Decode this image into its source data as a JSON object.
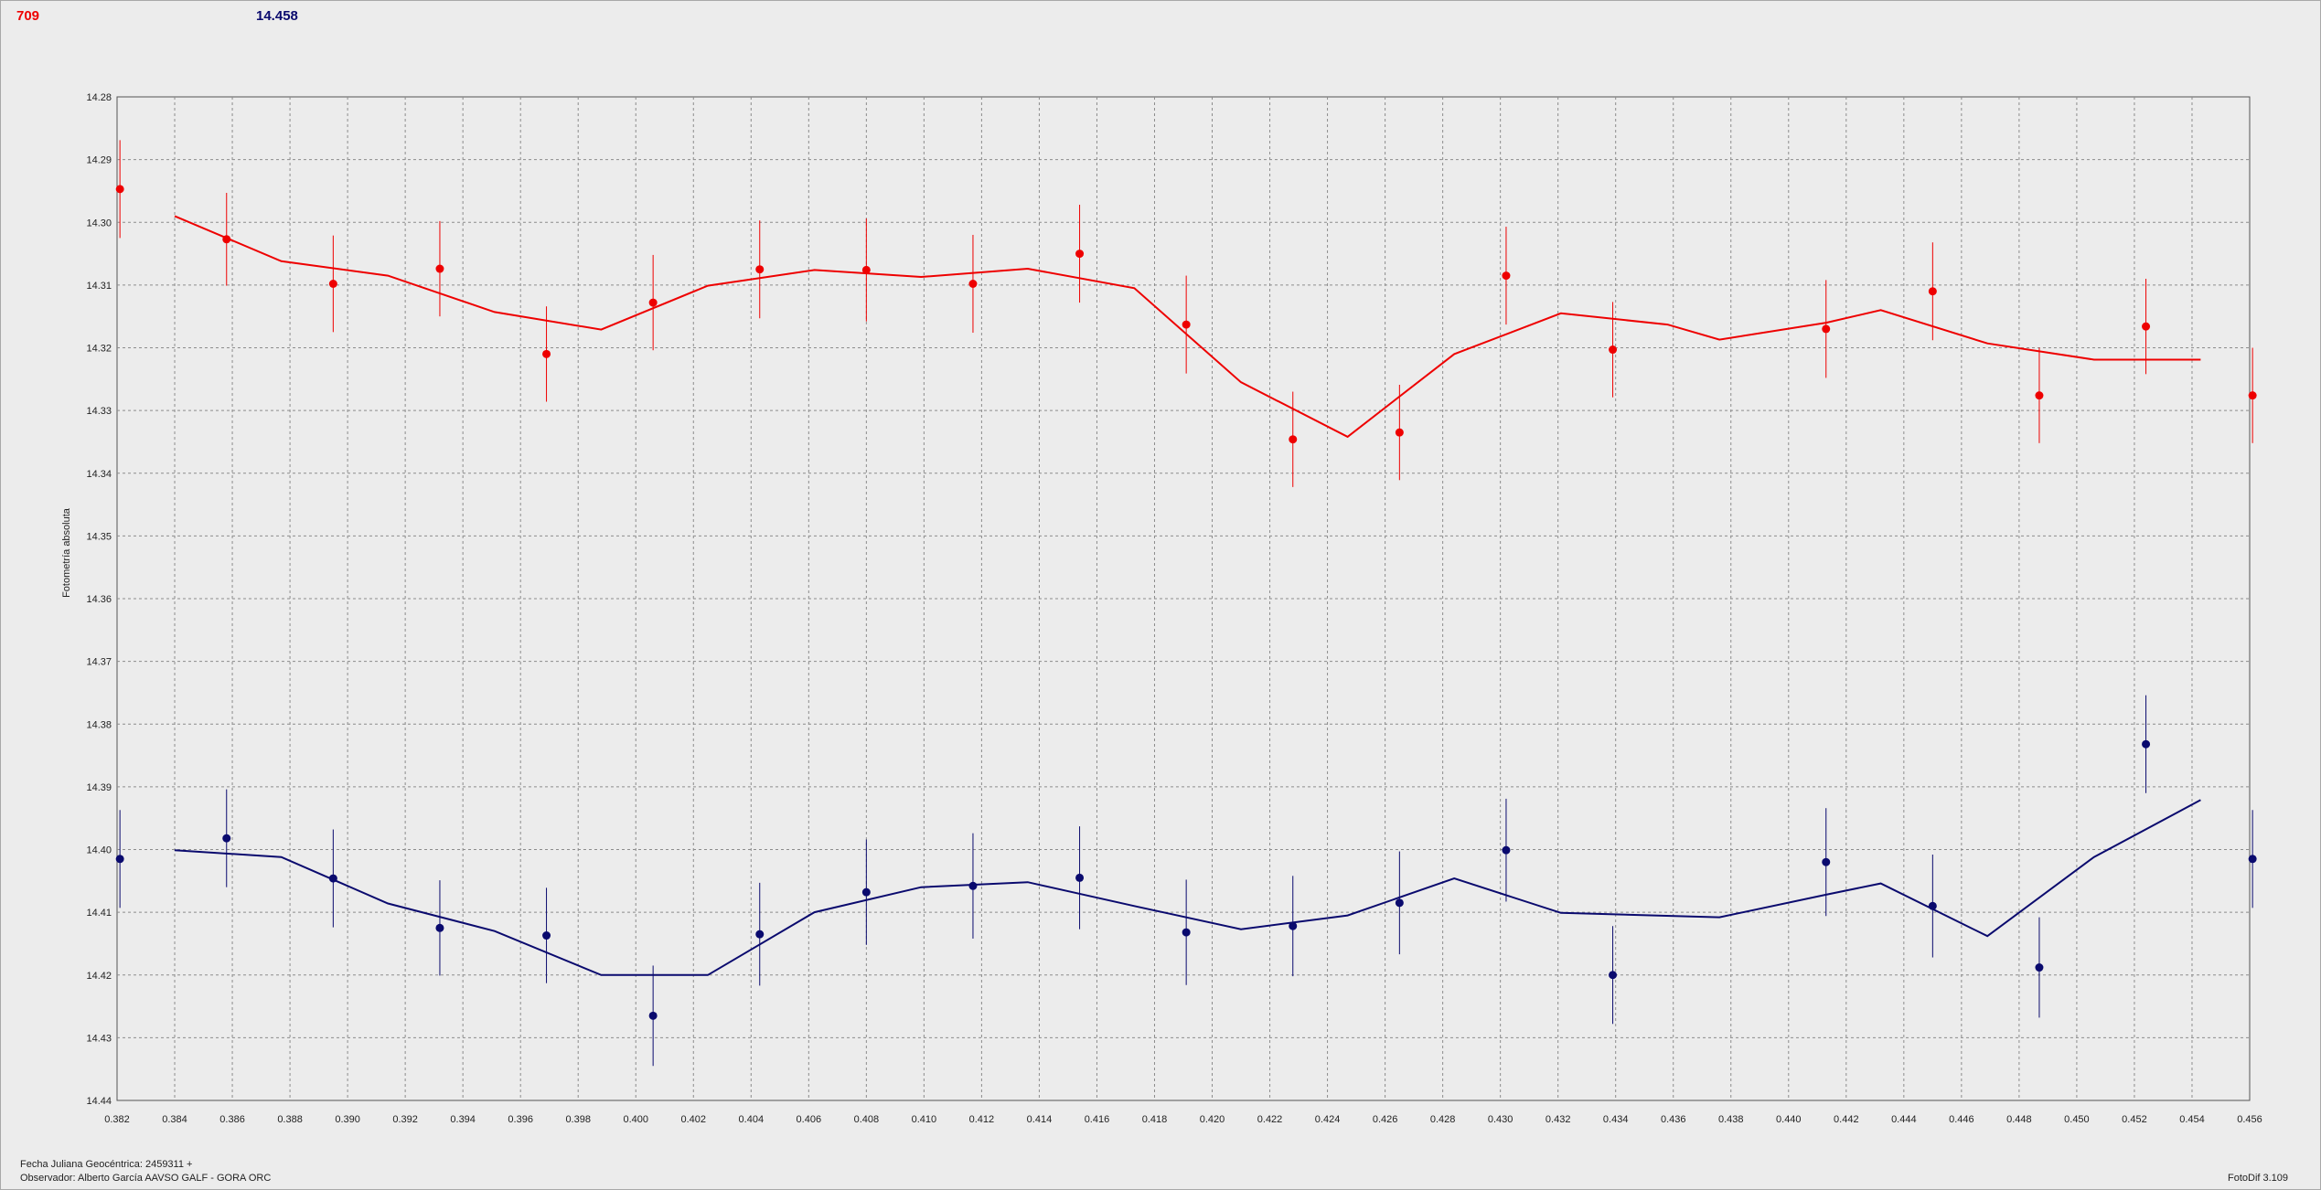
{
  "header": {
    "left_value": "709",
    "mid_value": "14.458"
  },
  "footer": {
    "date_line": "Fecha Juliana Geocéntrica: 2459311 +",
    "observer_line": "Observador: Alberto García AAVSO GALF - GORA ORC",
    "version": "FotoDif 3.109"
  },
  "colors": {
    "red_series": "#ee0000",
    "blue_series": "#0a0a6e",
    "grid": "#8c8c8c",
    "plot_bg": "#ececec"
  },
  "chart_data": {
    "type": "line",
    "title": "",
    "xlabel": "",
    "ylabel": "Fotometría absoluta",
    "xlim": [
      0.382,
      0.456
    ],
    "ylim": [
      14.28,
      14.44
    ],
    "y_inverted": true,
    "grid": true,
    "x_ticks": [
      "0.382",
      "0.384",
      "0.386",
      "0.388",
      "0.390",
      "0.392",
      "0.394",
      "0.396",
      "0.398",
      "0.400",
      "0.402",
      "0.404",
      "0.406",
      "0.408",
      "0.410",
      "0.412",
      "0.414",
      "0.416",
      "0.418",
      "0.420",
      "0.422",
      "0.424",
      "0.426",
      "0.428",
      "0.430",
      "0.432",
      "0.434",
      "0.436",
      "0.438",
      "0.440",
      "0.442",
      "0.444",
      "0.446",
      "0.448",
      "0.450",
      "0.452",
      "0.454",
      "0.456"
    ],
    "y_ticks": [
      "14.28",
      "14.29",
      "14.30",
      "14.31",
      "14.32",
      "14.33",
      "14.34",
      "14.35",
      "14.36",
      "14.37",
      "14.38",
      "14.39",
      "14.40",
      "14.41",
      "14.42",
      "14.43",
      "14.44"
    ],
    "series": [
      {
        "color": "#ee0000",
        "points": [
          {
            "x": 0.3821,
            "y": 14.2947,
            "err": 0.0078
          },
          {
            "x": 0.3858,
            "y": 14.3027,
            "err": 0.0074
          },
          {
            "x": 0.3895,
            "y": 14.3098,
            "err": 0.0077
          },
          {
            "x": 0.3932,
            "y": 14.3074,
            "err": 0.0076
          },
          {
            "x": 0.3969,
            "y": 14.321,
            "err": 0.0076
          },
          {
            "x": 0.4006,
            "y": 14.3128,
            "err": 0.0076
          },
          {
            "x": 0.4043,
            "y": 14.3075,
            "err": 0.0078
          },
          {
            "x": 0.408,
            "y": 14.3076,
            "err": 0.0082
          },
          {
            "x": 0.4117,
            "y": 14.3098,
            "err": 0.0078
          },
          {
            "x": 0.4154,
            "y": 14.305,
            "err": 0.0078
          },
          {
            "x": 0.4191,
            "y": 14.3163,
            "err": 0.0078
          },
          {
            "x": 0.4228,
            "y": 14.3346,
            "err": 0.0076
          },
          {
            "x": 0.4265,
            "y": 14.3335,
            "err": 0.0076
          },
          {
            "x": 0.4302,
            "y": 14.3085,
            "err": 0.0078
          },
          {
            "x": 0.4339,
            "y": 14.3203,
            "err": 0.0076
          },
          {
            "x": 0.4413,
            "y": 14.317,
            "err": 0.0078
          },
          {
            "x": 0.445,
            "y": 14.311,
            "err": 0.0078
          },
          {
            "x": 0.4487,
            "y": 14.3276,
            "err": 0.0076
          },
          {
            "x": 0.4524,
            "y": 14.3166,
            "err": 0.0076
          },
          {
            "x": 0.4561,
            "y": 14.3276,
            "err": 0.0076
          }
        ],
        "line": [
          {
            "x": 0.384,
            "y": 14.299
          },
          {
            "x": 0.3877,
            "y": 14.3062
          },
          {
            "x": 0.3914,
            "y": 14.3085
          },
          {
            "x": 0.3951,
            "y": 14.3143
          },
          {
            "x": 0.3988,
            "y": 14.3171
          },
          {
            "x": 0.4025,
            "y": 14.3101
          },
          {
            "x": 0.4062,
            "y": 14.3076
          },
          {
            "x": 0.4099,
            "y": 14.3087
          },
          {
            "x": 0.4136,
            "y": 14.3074
          },
          {
            "x": 0.4173,
            "y": 14.3105
          },
          {
            "x": 0.421,
            "y": 14.3255
          },
          {
            "x": 0.4247,
            "y": 14.3342
          },
          {
            "x": 0.4284,
            "y": 14.321
          },
          {
            "x": 0.4321,
            "y": 14.3145
          },
          {
            "x": 0.4358,
            "y": 14.3163
          },
          {
            "x": 0.4376,
            "y": 14.3187
          },
          {
            "x": 0.4413,
            "y": 14.316
          },
          {
            "x": 0.4432,
            "y": 14.314
          },
          {
            "x": 0.4469,
            "y": 14.3193
          },
          {
            "x": 0.4506,
            "y": 14.3219
          },
          {
            "x": 0.4543,
            "y": 14.3219
          }
        ]
      },
      {
        "color": "#0a0a6e",
        "points": [
          {
            "x": 0.3821,
            "y": 14.4015,
            "err": 0.0078
          },
          {
            "x": 0.3858,
            "y": 14.3982,
            "err": 0.0078
          },
          {
            "x": 0.3895,
            "y": 14.4046,
            "err": 0.0078
          },
          {
            "x": 0.3932,
            "y": 14.4125,
            "err": 0.0076
          },
          {
            "x": 0.3969,
            "y": 14.4137,
            "err": 0.0076
          },
          {
            "x": 0.4006,
            "y": 14.4265,
            "err": 0.008
          },
          {
            "x": 0.4043,
            "y": 14.4135,
            "err": 0.0082
          },
          {
            "x": 0.408,
            "y": 14.4068,
            "err": 0.0084
          },
          {
            "x": 0.4117,
            "y": 14.4058,
            "err": 0.0084
          },
          {
            "x": 0.4154,
            "y": 14.4045,
            "err": 0.0082
          },
          {
            "x": 0.4191,
            "y": 14.4132,
            "err": 0.0084
          },
          {
            "x": 0.4228,
            "y": 14.4122,
            "err": 0.008
          },
          {
            "x": 0.4265,
            "y": 14.4085,
            "err": 0.0082
          },
          {
            "x": 0.4302,
            "y": 14.4001,
            "err": 0.0082
          },
          {
            "x": 0.4339,
            "y": 14.42,
            "err": 0.0078
          },
          {
            "x": 0.4413,
            "y": 14.402,
            "err": 0.0086
          },
          {
            "x": 0.445,
            "y": 14.409,
            "err": 0.0082
          },
          {
            "x": 0.4487,
            "y": 14.4188,
            "err": 0.008
          },
          {
            "x": 0.4524,
            "y": 14.3832,
            "err": 0.0078
          },
          {
            "x": 0.4561,
            "y": 14.4015,
            "err": 0.0078
          }
        ],
        "line": [
          {
            "x": 0.384,
            "y": 14.4001
          },
          {
            "x": 0.3877,
            "y": 14.4012
          },
          {
            "x": 0.3914,
            "y": 14.4086
          },
          {
            "x": 0.3951,
            "y": 14.413
          },
          {
            "x": 0.3988,
            "y": 14.42
          },
          {
            "x": 0.4025,
            "y": 14.42
          },
          {
            "x": 0.4062,
            "y": 14.41
          },
          {
            "x": 0.4099,
            "y": 14.406
          },
          {
            "x": 0.4136,
            "y": 14.4052
          },
          {
            "x": 0.4173,
            "y": 14.409
          },
          {
            "x": 0.421,
            "y": 14.4127
          },
          {
            "x": 0.4247,
            "y": 14.4105
          },
          {
            "x": 0.4284,
            "y": 14.4046
          },
          {
            "x": 0.4321,
            "y": 14.4101
          },
          {
            "x": 0.4376,
            "y": 14.4108
          },
          {
            "x": 0.4413,
            "y": 14.4072
          },
          {
            "x": 0.4432,
            "y": 14.4054
          },
          {
            "x": 0.4469,
            "y": 14.4138
          },
          {
            "x": 0.4506,
            "y": 14.4012
          },
          {
            "x": 0.4543,
            "y": 14.3921
          }
        ]
      }
    ]
  }
}
